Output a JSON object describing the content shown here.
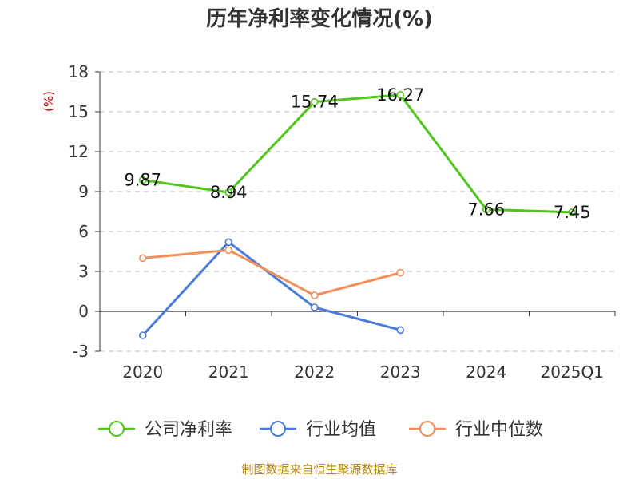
{
  "chart_data": {
    "type": "line",
    "title": "历年净利率变化情况(%)",
    "ylabel": "(%)",
    "categories": [
      "2020",
      "2021",
      "2022",
      "2023",
      "2024",
      "2025Q1"
    ],
    "yticks": [
      "18",
      "15",
      "12",
      "9",
      "6",
      "3",
      "0",
      "-3"
    ],
    "ylim": [
      -3,
      18
    ],
    "grid": true,
    "legend_position": "bottom",
    "series": [
      {
        "name": "公司净利率",
        "color": "#52c41a",
        "values": [
          9.87,
          8.94,
          15.74,
          16.27,
          7.66,
          7.45
        ],
        "labels": [
          "9.87",
          "8.94",
          "15.74",
          "16.27",
          "7.66",
          "7.45"
        ]
      },
      {
        "name": "行业均值",
        "color": "#4a7bd9",
        "values": [
          -1.8,
          5.2,
          0.3,
          -1.4,
          null,
          null
        ]
      },
      {
        "name": "行业中位数",
        "color": "#f28e5b",
        "values": [
          4.0,
          4.6,
          1.2,
          2.9,
          null,
          null
        ]
      }
    ],
    "source": "制图数据来自恒生聚源数据库"
  }
}
